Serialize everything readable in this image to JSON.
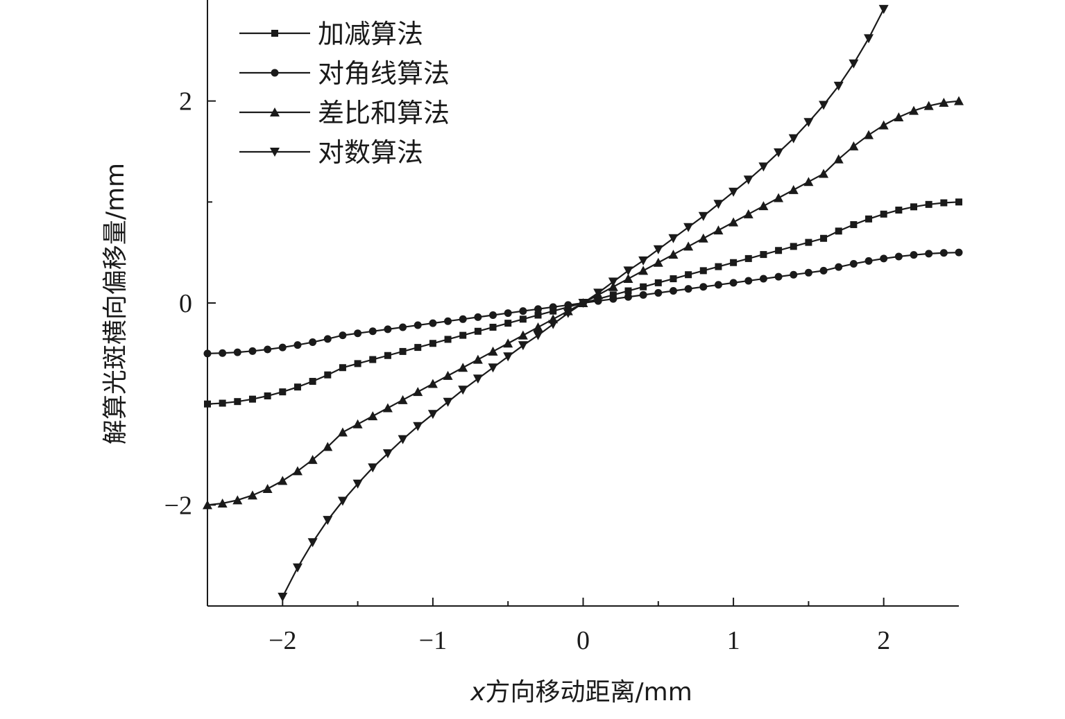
{
  "chart_data": {
    "type": "line",
    "xlabel_var": "x",
    "xlabel_rest": "方向移动距离/mm",
    "ylabel": "解算光斑横向偏移量/mm",
    "xlim": [
      -2.5,
      2.5
    ],
    "ylim": [
      -3,
      3
    ],
    "xticks_major": [
      -2,
      -1,
      0,
      1,
      2
    ],
    "xticks_minor": [
      -1.5,
      -0.5,
      0.5,
      1.5
    ],
    "yticks_major": [
      -2,
      0,
      2
    ],
    "yticks_minor": [
      -1,
      1
    ],
    "xtick_labels": [
      "−2",
      "−1",
      "0",
      "1",
      "2"
    ],
    "ytick_labels": [
      "−2",
      "0",
      "2"
    ],
    "grid": false,
    "legend_position": "top-left",
    "series": [
      {
        "name": "加减算法",
        "marker": "square",
        "x": [
          -2.5,
          -2.4,
          -2.3,
          -2.2,
          -2.1,
          -2.0,
          -1.9,
          -1.8,
          -1.7,
          -1.6,
          -1.5,
          -1.4,
          -1.3,
          -1.2,
          -1.1,
          -1.0,
          -0.9,
          -0.8,
          -0.7,
          -0.6,
          -0.5,
          -0.4,
          -0.3,
          -0.2,
          -0.1,
          0.0,
          0.1,
          0.2,
          0.3,
          0.4,
          0.5,
          0.6,
          0.7,
          0.8,
          0.9,
          1.0,
          1.1,
          1.2,
          1.3,
          1.4,
          1.5,
          1.6,
          1.7,
          1.8,
          1.9,
          2.0,
          2.1,
          2.2,
          2.3,
          2.4,
          2.5
        ],
        "y": [
          -1.0,
          -0.992,
          -0.976,
          -0.952,
          -0.92,
          -0.88,
          -0.832,
          -0.776,
          -0.712,
          -0.64,
          -0.6,
          -0.56,
          -0.52,
          -0.48,
          -0.44,
          -0.4,
          -0.36,
          -0.32,
          -0.28,
          -0.24,
          -0.2,
          -0.16,
          -0.12,
          -0.08,
          -0.04,
          0.0,
          0.04,
          0.08,
          0.12,
          0.16,
          0.2,
          0.24,
          0.28,
          0.32,
          0.36,
          0.4,
          0.44,
          0.48,
          0.52,
          0.56,
          0.6,
          0.64,
          0.712,
          0.776,
          0.832,
          0.88,
          0.92,
          0.952,
          0.976,
          0.992,
          1.0
        ]
      },
      {
        "name": "对角线算法",
        "marker": "circle",
        "x": [
          -2.5,
          -2.4,
          -2.3,
          -2.2,
          -2.1,
          -2.0,
          -1.9,
          -1.8,
          -1.7,
          -1.6,
          -1.5,
          -1.4,
          -1.3,
          -1.2,
          -1.1,
          -1.0,
          -0.9,
          -0.8,
          -0.7,
          -0.6,
          -0.5,
          -0.4,
          -0.3,
          -0.2,
          -0.1,
          0.0,
          0.1,
          0.2,
          0.3,
          0.4,
          0.5,
          0.6,
          0.7,
          0.8,
          0.9,
          1.0,
          1.1,
          1.2,
          1.3,
          1.4,
          1.5,
          1.6,
          1.7,
          1.8,
          1.9,
          2.0,
          2.1,
          2.2,
          2.3,
          2.4,
          2.5
        ],
        "y": [
          -0.5,
          -0.496,
          -0.488,
          -0.476,
          -0.46,
          -0.44,
          -0.416,
          -0.388,
          -0.356,
          -0.32,
          -0.3,
          -0.28,
          -0.26,
          -0.24,
          -0.22,
          -0.2,
          -0.18,
          -0.16,
          -0.14,
          -0.12,
          -0.1,
          -0.08,
          -0.06,
          -0.04,
          -0.02,
          0.0,
          0.02,
          0.04,
          0.06,
          0.08,
          0.1,
          0.12,
          0.14,
          0.16,
          0.18,
          0.2,
          0.22,
          0.24,
          0.26,
          0.28,
          0.3,
          0.32,
          0.356,
          0.388,
          0.416,
          0.44,
          0.46,
          0.476,
          0.488,
          0.496,
          0.5
        ]
      },
      {
        "name": "差比和算法",
        "marker": "triangle-up",
        "x": [
          -2.5,
          -2.4,
          -2.3,
          -2.2,
          -2.1,
          -2.0,
          -1.9,
          -1.8,
          -1.7,
          -1.6,
          -1.5,
          -1.4,
          -1.3,
          -1.2,
          -1.1,
          -1.0,
          -0.9,
          -0.8,
          -0.7,
          -0.6,
          -0.5,
          -0.4,
          -0.3,
          -0.2,
          -0.1,
          0.0,
          0.1,
          0.2,
          0.3,
          0.4,
          0.5,
          0.6,
          0.7,
          0.8,
          0.9,
          1.0,
          1.1,
          1.2,
          1.3,
          1.4,
          1.5,
          1.6,
          1.7,
          1.8,
          1.9,
          2.0,
          2.1,
          2.2,
          2.3,
          2.4,
          2.5
        ],
        "y": [
          -2.0,
          -1.984,
          -1.952,
          -1.904,
          -1.84,
          -1.76,
          -1.664,
          -1.552,
          -1.424,
          -1.28,
          -1.2,
          -1.12,
          -1.04,
          -0.96,
          -0.88,
          -0.8,
          -0.72,
          -0.64,
          -0.56,
          -0.48,
          -0.4,
          -0.32,
          -0.24,
          -0.16,
          -0.08,
          0.0,
          0.08,
          0.16,
          0.24,
          0.32,
          0.4,
          0.48,
          0.56,
          0.64,
          0.72,
          0.8,
          0.88,
          0.96,
          1.04,
          1.12,
          1.2,
          1.28,
          1.424,
          1.552,
          1.664,
          1.76,
          1.84,
          1.904,
          1.952,
          1.984,
          2.0
        ]
      },
      {
        "name": "对数算法",
        "marker": "triangle-down",
        "x": [
          -2.0,
          -1.9,
          -1.8,
          -1.7,
          -1.6,
          -1.5,
          -1.4,
          -1.3,
          -1.2,
          -1.1,
          -1.0,
          -0.9,
          -0.8,
          -0.7,
          -0.6,
          -0.5,
          -0.4,
          -0.3,
          -0.2,
          -0.1,
          0.0,
          0.1,
          0.2,
          0.3,
          0.4,
          0.5,
          0.6,
          0.7,
          0.8,
          0.9,
          1.0,
          1.1,
          1.2,
          1.3,
          1.4,
          1.5,
          1.6,
          1.7,
          1.8,
          1.9,
          2.0
        ],
        "y": [
          -2.91,
          -2.62,
          -2.37,
          -2.15,
          -1.96,
          -1.79,
          -1.63,
          -1.49,
          -1.35,
          -1.22,
          -1.1,
          -0.98,
          -0.86,
          -0.75,
          -0.64,
          -0.53,
          -0.42,
          -0.32,
          -0.21,
          -0.1,
          0.0,
          0.1,
          0.21,
          0.32,
          0.42,
          0.53,
          0.64,
          0.75,
          0.86,
          0.98,
          1.1,
          1.22,
          1.35,
          1.49,
          1.63,
          1.79,
          1.96,
          2.15,
          2.37,
          2.62,
          2.91
        ]
      }
    ]
  }
}
